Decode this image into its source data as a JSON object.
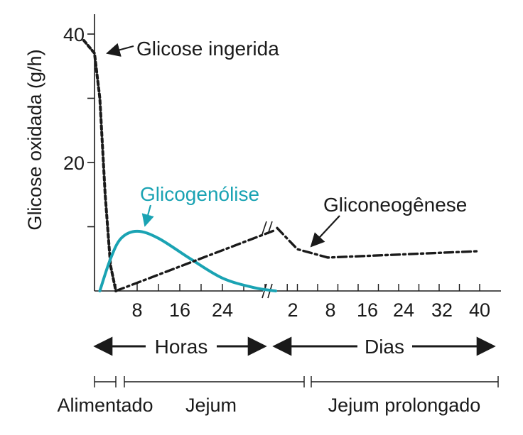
{
  "chart_data": {
    "type": "line",
    "ylabel": "Glicose oxidada (g/h)",
    "ylim": [
      0,
      40
    ],
    "y_ticks": [
      {
        "value": 40,
        "label": "40"
      },
      {
        "value": 30,
        "label": ""
      },
      {
        "value": 20,
        "label": "20"
      },
      {
        "value": 10,
        "label": ""
      }
    ],
    "x_hours_ticks": [
      "8",
      "16",
      "24"
    ],
    "x_days_ticks": [
      "2",
      "8",
      "16",
      "24",
      "32",
      "40"
    ],
    "periods": {
      "hours": "Horas",
      "days": "Dias"
    },
    "phases": [
      {
        "label": "Alimentado"
      },
      {
        "label": "Jejum"
      },
      {
        "label": "Jejum prolongado"
      }
    ],
    "series": [
      {
        "name": "Glicose ingerida",
        "color": "#1a1a1a",
        "style": "dotted",
        "points": [
          {
            "segment": "hours",
            "x": -2,
            "y": 39
          },
          {
            "segment": "hours",
            "x": 0,
            "y": 37
          },
          {
            "segment": "hours",
            "x": 1,
            "y": 30
          },
          {
            "segment": "hours",
            "x": 2,
            "y": 15
          },
          {
            "segment": "hours",
            "x": 3,
            "y": 4
          },
          {
            "segment": "hours",
            "x": 4,
            "y": 0
          }
        ]
      },
      {
        "name": "Glicogenólise",
        "color": "#1aa3b3",
        "style": "solid",
        "points": [
          {
            "segment": "hours",
            "x": 1,
            "y": 0
          },
          {
            "segment": "hours",
            "x": 3,
            "y": 5
          },
          {
            "segment": "hours",
            "x": 5,
            "y": 8.2
          },
          {
            "segment": "hours",
            "x": 8,
            "y": 9.3
          },
          {
            "segment": "hours",
            "x": 12,
            "y": 8.2
          },
          {
            "segment": "hours",
            "x": 18,
            "y": 5
          },
          {
            "segment": "hours",
            "x": 24,
            "y": 2
          },
          {
            "segment": "hours",
            "x": 30,
            "y": 0.5
          },
          {
            "segment": "hours",
            "x": 34,
            "y": 0
          }
        ]
      },
      {
        "name": "Gliconeogênese",
        "color": "#1a1a1a",
        "style": "dash-dot",
        "points": [
          {
            "segment": "hours",
            "x": 4,
            "y": 0
          },
          {
            "segment": "hours",
            "x": 34,
            "y": 9.5
          },
          {
            "segment": "days",
            "x": 0,
            "y": 9.8
          },
          {
            "segment": "days",
            "x": 4,
            "y": 6.5
          },
          {
            "segment": "days",
            "x": 10,
            "y": 5.2
          },
          {
            "segment": "days",
            "x": 40,
            "y": 6.2
          }
        ]
      }
    ],
    "annotations": [
      {
        "text": "Glicose ingerida",
        "series": "Glicose ingerida"
      },
      {
        "text": "Glicogenólise",
        "series": "Glicogenólise"
      },
      {
        "text": "Gliconeogênese",
        "series": "Gliconeogênese"
      }
    ]
  }
}
